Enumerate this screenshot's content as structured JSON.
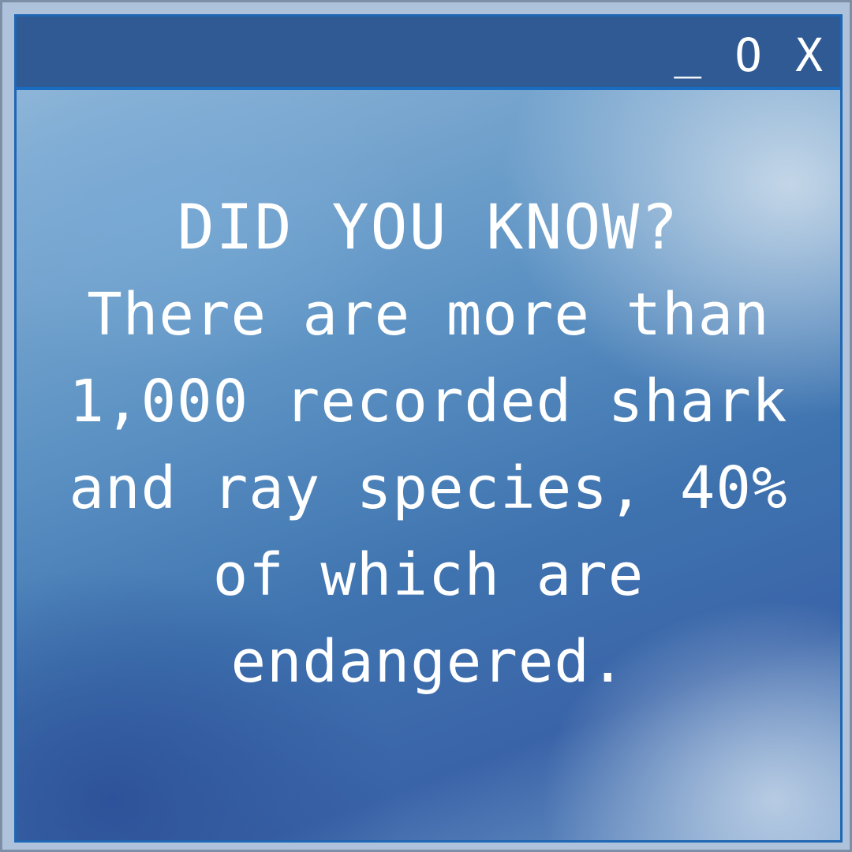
{
  "window": {
    "controls": {
      "minimize": "_",
      "maximize": "O",
      "close": "X"
    }
  },
  "message": {
    "heading": "DID YOU KNOW?",
    "lines": [
      "There are more than",
      "1,000 recorded shark",
      "and ray species, 40%",
      "of which are",
      "endangered."
    ]
  }
}
